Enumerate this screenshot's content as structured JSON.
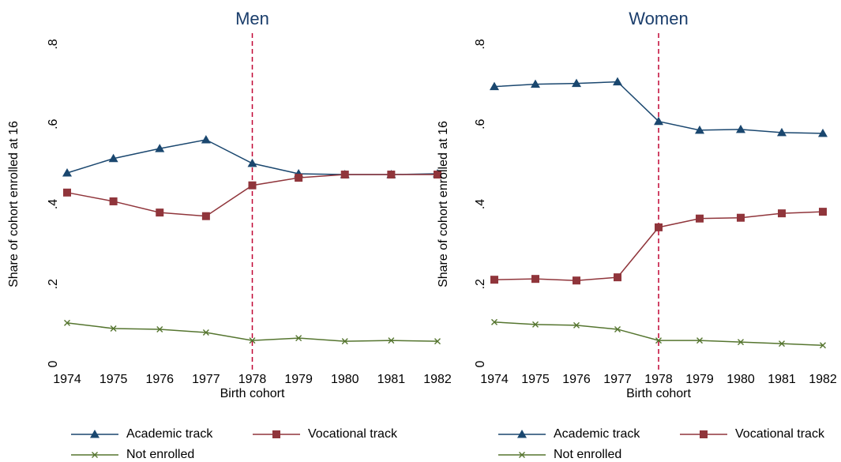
{
  "chart_data": [
    {
      "type": "line",
      "title": "Men",
      "x_label": "Birth cohort",
      "y_label": "Share of cohort enrolled at 16",
      "x": [
        1974,
        1975,
        1976,
        1977,
        1978,
        1979,
        1980,
        1981,
        1982
      ],
      "xlim": [
        1974,
        1982
      ],
      "xticks": [
        1974,
        1975,
        1976,
        1977,
        1978,
        1979,
        1980,
        1981,
        1982
      ],
      "ylim": [
        0,
        0.8
      ],
      "yticks": [
        0,
        {
          "value": 0.2,
          "label": ".2"
        },
        {
          "value": 0.4,
          "label": ".4"
        },
        {
          "value": 0.6,
          "label": ".6"
        },
        {
          "value": 0.8,
          "label": ".8"
        }
      ],
      "grid": false,
      "vline": 1978,
      "vline_color": "#c10534",
      "legend": "bottom",
      "series": [
        {
          "name": "Academic track",
          "color": "#1a476f",
          "marker": "triangle",
          "values": [
            0.478,
            0.514,
            0.539,
            0.561,
            0.502,
            0.476,
            0.474,
            0.474,
            0.476
          ]
        },
        {
          "name": "Vocational track",
          "color": "#90353b",
          "marker": "square",
          "values": [
            0.429,
            0.407,
            0.379,
            0.37,
            0.447,
            0.466,
            0.474,
            0.474,
            0.474
          ]
        },
        {
          "name": "Not enrolled",
          "color": "#55752f",
          "marker": "x",
          "values": [
            0.103,
            0.089,
            0.087,
            0.079,
            0.059,
            0.065,
            0.057,
            0.059,
            0.057
          ]
        }
      ]
    },
    {
      "type": "line",
      "title": "Women",
      "x_label": "Birth cohort",
      "y_label": "Share of cohort enrolled at 16",
      "x": [
        1974,
        1975,
        1976,
        1977,
        1978,
        1979,
        1980,
        1981,
        1982
      ],
      "xlim": [
        1974,
        1982
      ],
      "xticks": [
        1974,
        1975,
        1976,
        1977,
        1978,
        1979,
        1980,
        1981,
        1982
      ],
      "ylim": [
        0,
        0.8
      ],
      "yticks": [
        0,
        {
          "value": 0.2,
          "label": ".2"
        },
        {
          "value": 0.4,
          "label": ".4"
        },
        {
          "value": 0.6,
          "label": ".6"
        },
        {
          "value": 0.8,
          "label": ".8"
        }
      ],
      "grid": false,
      "vline": 1978,
      "vline_color": "#c10534",
      "legend": "bottom",
      "series": [
        {
          "name": "Academic track",
          "color": "#1a476f",
          "marker": "triangle",
          "values": [
            0.694,
            0.7,
            0.702,
            0.706,
            0.607,
            0.585,
            0.587,
            0.579,
            0.577
          ]
        },
        {
          "name": "Vocational track",
          "color": "#90353b",
          "marker": "square",
          "values": [
            0.211,
            0.213,
            0.209,
            0.217,
            0.342,
            0.364,
            0.366,
            0.377,
            0.381
          ]
        },
        {
          "name": "Not enrolled",
          "color": "#55752f",
          "marker": "x",
          "values": [
            0.105,
            0.099,
            0.097,
            0.087,
            0.059,
            0.059,
            0.055,
            0.051,
            0.047
          ]
        }
      ]
    }
  ]
}
